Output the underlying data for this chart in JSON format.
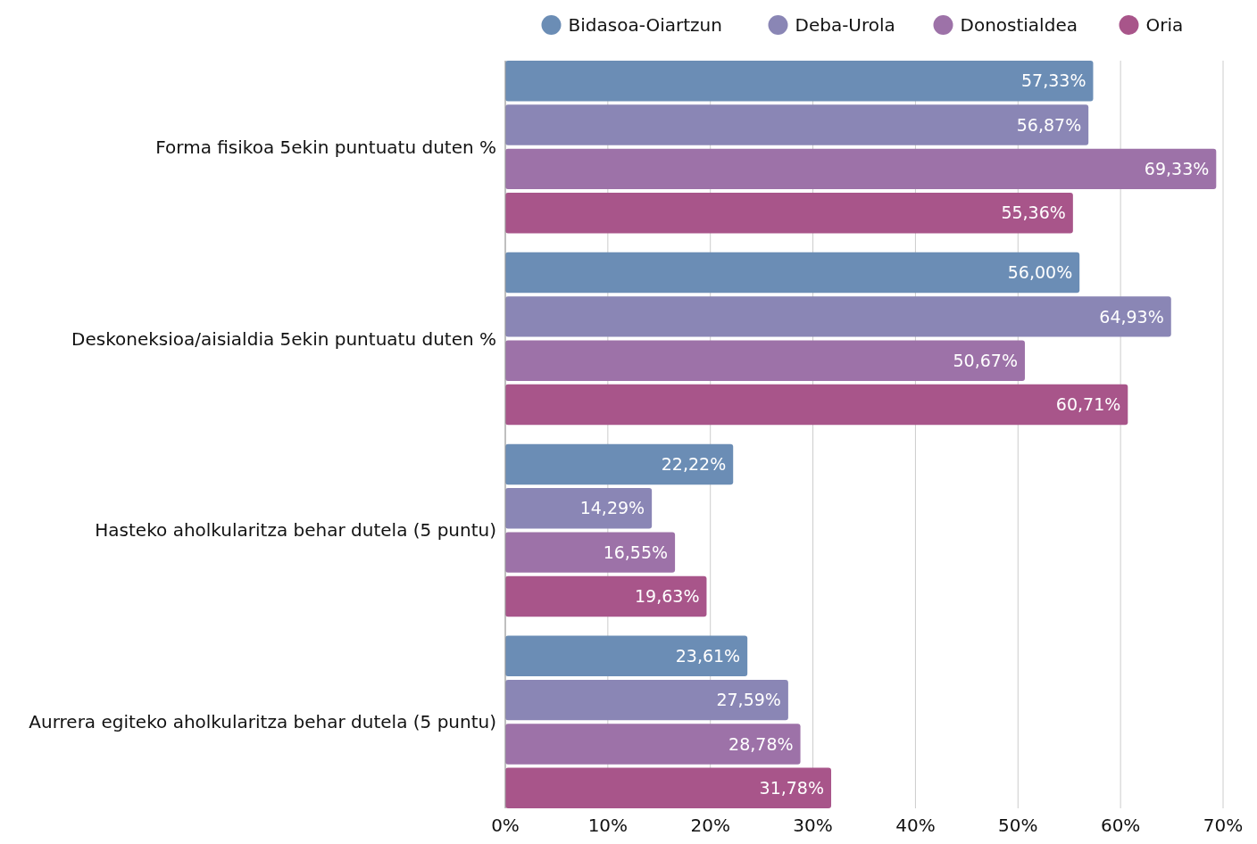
{
  "chart_data": {
    "type": "bar",
    "orientation": "horizontal",
    "categories": [
      "Forma fisikoa 5ekin puntuatu duten %",
      "Deskoneksioa/aisialdia 5ekin puntuatu duten %",
      "Hasteko aholkularitza behar dutela (5 puntu)",
      "Aurrera egiteko aholkularitza behar dutela (5 puntu)"
    ],
    "series": [
      {
        "name": "Bidasoa-Oiartzun",
        "color": "#6b8db5",
        "values": [
          57.33,
          56.0,
          22.22,
          23.61
        ],
        "value_labels": [
          "57,33%",
          "56,00%",
          "22,22%",
          "23,61%"
        ]
      },
      {
        "name": "Deba-Urola",
        "color": "#8a86b5",
        "values": [
          56.87,
          64.93,
          14.29,
          27.59
        ],
        "value_labels": [
          "56,87%",
          "64,93%",
          "14,29%",
          "27,59%"
        ]
      },
      {
        "name": "Donostialdea",
        "color": "#9d72a8",
        "values": [
          69.33,
          50.67,
          16.55,
          28.78
        ],
        "value_labels": [
          "69,33%",
          "50,67%",
          "16,55%",
          "28,78%"
        ]
      },
      {
        "name": "Oria",
        "color": "#a8558a",
        "values": [
          55.36,
          60.71,
          19.63,
          31.78
        ],
        "value_labels": [
          "55,36%",
          "60,71%",
          "19,63%",
          "31,78%"
        ]
      }
    ],
    "xlim": [
      0,
      70
    ],
    "xticks": [
      {
        "value": 0,
        "label": "0%"
      },
      {
        "value": 10,
        "label": "10%"
      },
      {
        "value": 20,
        "label": "20%"
      },
      {
        "value": 30,
        "label": "30%"
      },
      {
        "value": 40,
        "label": "40%"
      },
      {
        "value": 50,
        "label": "50%"
      },
      {
        "value": 60,
        "label": "60%"
      },
      {
        "value": 70,
        "label": "70%"
      }
    ],
    "grid": "x",
    "legend": "top"
  }
}
